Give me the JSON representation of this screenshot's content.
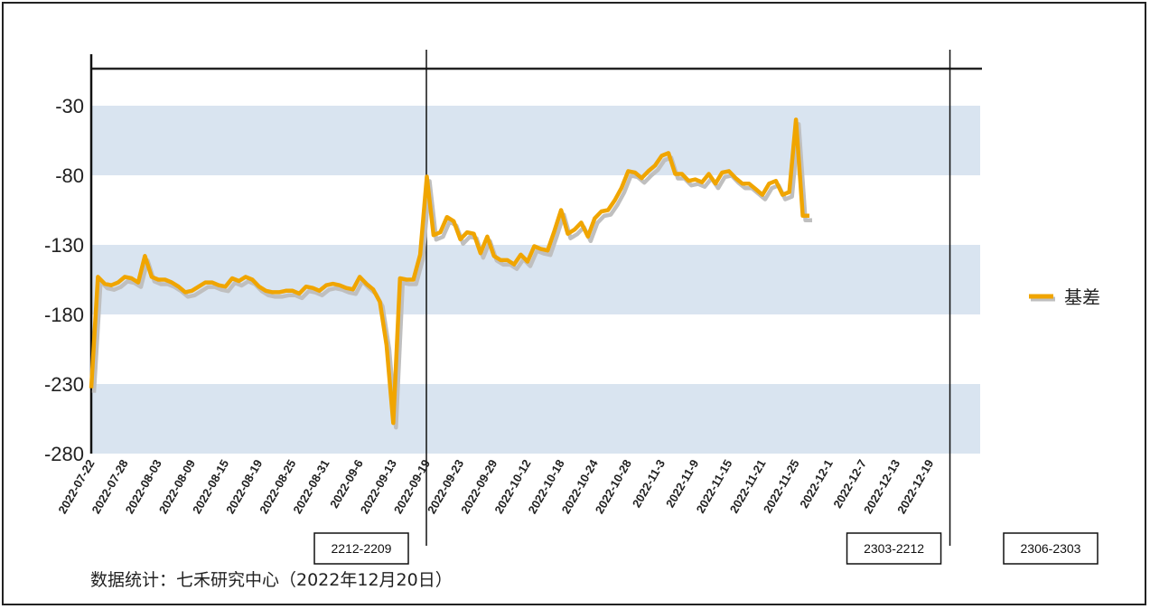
{
  "chart_data": {
    "type": "line",
    "title": "",
    "xlabel": "",
    "ylabel": "",
    "ylim": [
      -280,
      20
    ],
    "yticks": [
      "-30",
      "-80",
      "-130",
      "-180",
      "-230",
      "-280"
    ],
    "ytick_values": [
      -30,
      -80,
      -130,
      -180,
      -230,
      -280
    ],
    "band_ranges": [
      [
        -80,
        -30
      ],
      [
        -180,
        -130
      ],
      [
        -280,
        -230
      ]
    ],
    "band_color": "#d9e4f0",
    "line_color": "#f0a500",
    "shadow_color": "#bfbfbf",
    "x_tick_labels": [
      "2022-07-22",
      "2022-07-28",
      "2022-08-03",
      "2022-08-09",
      "2022-08-15",
      "2022-08-19",
      "2022-08-25",
      "2022-08-31",
      "2022-09-6",
      "2022-09-13",
      "2022-09-19",
      "2022-09-23",
      "2022-09-29",
      "2022-10-12",
      "2022-10-18",
      "2022-10-24",
      "2022-10-28",
      "2022-11-3",
      "2022-11-9",
      "2022-11-15",
      "2022-11-21",
      "2022-11-25",
      "2022-12-1",
      "2022-12-7",
      "2022-12-13",
      "2022-12-19"
    ],
    "x_tick_step": 5,
    "contract_rolls": [
      {
        "label": "2212-2209",
        "at_index": 50
      },
      {
        "label": "2303-2212",
        "at_index": 128
      }
    ],
    "extra_box_label": "2306-2303",
    "series": [
      {
        "name": "基差",
        "values": [
          -233,
          -153,
          -158,
          -159,
          -157,
          -153,
          -154,
          -157,
          -138,
          -153,
          -155,
          -155,
          -157,
          -160,
          -164,
          -163,
          -160,
          -157,
          -157,
          -159,
          -160,
          -154,
          -156,
          -153,
          -155,
          -160,
          -163,
          -164,
          -164,
          -163,
          -163,
          -165,
          -160,
          -161,
          -163,
          -159,
          -158,
          -159,
          -161,
          -162,
          -153,
          -158,
          -162,
          -171,
          -202,
          -258,
          -154,
          -155,
          -155,
          -137,
          -81,
          -123,
          -121,
          -110,
          -113,
          -126,
          -121,
          -122,
          -136,
          -124,
          -138,
          -141,
          -141,
          -144,
          -137,
          -142,
          -131,
          -133,
          -134,
          -120,
          -105,
          -122,
          -119,
          -114,
          -124,
          -111,
          -106,
          -105,
          -98,
          -89,
          -77,
          -78,
          -82,
          -77,
          -73,
          -66,
          -64,
          -79,
          -79,
          -84,
          -83,
          -85,
          -79,
          -86,
          -78,
          -77,
          -82,
          -86,
          -86,
          -90,
          -94,
          -86,
          -84,
          -94,
          -92,
          -40,
          -109,
          -109
        ]
      }
    ],
    "legend": {
      "label": "基差",
      "position": "right"
    }
  },
  "footer": "数据统计：七禾研究中心（2022年12月20日）"
}
